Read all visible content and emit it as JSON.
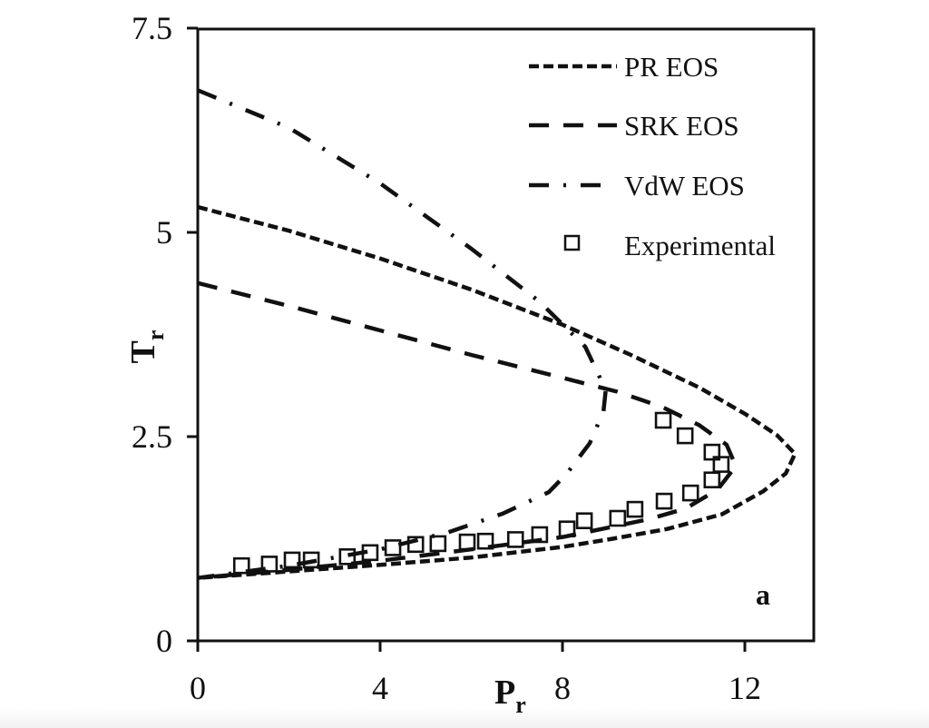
{
  "chart_data": {
    "type": "line",
    "title": "",
    "panel_label": "a",
    "xlabel": "P",
    "xlabel_sub": "r",
    "ylabel": "T",
    "ylabel_sub": "r",
    "xlim": [
      0,
      13.5
    ],
    "ylim": [
      0,
      7.5
    ],
    "xticks": [
      0,
      4,
      8,
      12
    ],
    "xtick_labels": [
      "0",
      "4",
      "8",
      "12"
    ],
    "yticks": [
      0,
      2.5,
      5,
      7.5
    ],
    "ytick_labels": [
      "0",
      "2.5",
      "5",
      "7.5"
    ],
    "grid": false,
    "legend_position": "upper right",
    "legend": [
      {
        "label": "PR EOS",
        "style": "short-dash"
      },
      {
        "label": "SRK EOS",
        "style": "long-dash"
      },
      {
        "label": "VdW EOS",
        "style": "dash-dot"
      },
      {
        "label": "Experimental",
        "style": "open-square-marker"
      }
    ],
    "series": [
      {
        "name": "PR EOS",
        "style": "short-dash",
        "points": [
          [
            0,
            5.31
          ],
          [
            2,
            5.02
          ],
          [
            4,
            4.68
          ],
          [
            6,
            4.3
          ],
          [
            8,
            3.87
          ],
          [
            9.5,
            3.5
          ],
          [
            11,
            3.1
          ],
          [
            12,
            2.78
          ],
          [
            12.7,
            2.52
          ],
          [
            13.1,
            2.29
          ],
          [
            12.9,
            2.05
          ],
          [
            12.4,
            1.83
          ],
          [
            11.5,
            1.55
          ],
          [
            10.3,
            1.37
          ],
          [
            9.1,
            1.25
          ],
          [
            8,
            1.15
          ],
          [
            6,
            1.02
          ],
          [
            4,
            0.93
          ],
          [
            2,
            0.85
          ],
          [
            0,
            0.77
          ]
        ]
      },
      {
        "name": "SRK EOS",
        "style": "long-dash",
        "points": [
          [
            0,
            4.38
          ],
          [
            2,
            4.1
          ],
          [
            4,
            3.8
          ],
          [
            6,
            3.5
          ],
          [
            8,
            3.22
          ],
          [
            9.2,
            3.05
          ],
          [
            10.2,
            2.86
          ],
          [
            11,
            2.64
          ],
          [
            11.6,
            2.4
          ],
          [
            11.8,
            2.14
          ],
          [
            11.4,
            1.85
          ],
          [
            10.7,
            1.62
          ],
          [
            9.9,
            1.49
          ],
          [
            8,
            1.27
          ],
          [
            6,
            1.12
          ],
          [
            4,
            0.98
          ],
          [
            2,
            0.87
          ],
          [
            0,
            0.77
          ]
        ]
      },
      {
        "name": "VdW EOS",
        "style": "dash-dot",
        "points": [
          [
            0,
            6.74
          ],
          [
            2,
            6.28
          ],
          [
            4,
            5.6
          ],
          [
            6,
            4.8
          ],
          [
            7.5,
            4.15
          ],
          [
            8.5,
            3.6
          ],
          [
            8.95,
            3.07
          ],
          [
            8.9,
            2.81
          ],
          [
            8.6,
            2.42
          ],
          [
            8.1,
            2.05
          ],
          [
            7.7,
            1.82
          ],
          [
            6.7,
            1.56
          ],
          [
            5.5,
            1.33
          ],
          [
            4,
            1.12
          ],
          [
            2,
            0.92
          ],
          [
            0,
            0.77
          ]
        ]
      },
      {
        "name": "Experimental",
        "style": "open-square-marker",
        "points": [
          [
            0.96,
            0.92
          ],
          [
            1.57,
            0.94
          ],
          [
            2.07,
            0.99
          ],
          [
            2.49,
            0.99
          ],
          [
            3.28,
            1.03
          ],
          [
            3.78,
            1.08
          ],
          [
            4.28,
            1.14
          ],
          [
            4.78,
            1.18
          ],
          [
            5.27,
            1.19
          ],
          [
            5.91,
            1.21
          ],
          [
            6.31,
            1.22
          ],
          [
            6.97,
            1.24
          ],
          [
            7.5,
            1.3
          ],
          [
            8.1,
            1.37
          ],
          [
            8.48,
            1.47
          ],
          [
            9.21,
            1.5
          ],
          [
            9.59,
            1.61
          ],
          [
            10.23,
            1.71
          ],
          [
            10.81,
            1.81
          ],
          [
            11.28,
            1.97
          ],
          [
            11.48,
            2.16
          ],
          [
            11.28,
            2.31
          ],
          [
            10.69,
            2.51
          ],
          [
            10.21,
            2.7
          ]
        ]
      }
    ]
  }
}
